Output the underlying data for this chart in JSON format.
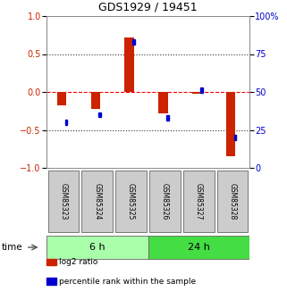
{
  "title": "GDS1929 / 19451",
  "samples": [
    "GSM85323",
    "GSM85324",
    "GSM85325",
    "GSM85326",
    "GSM85327",
    "GSM85328"
  ],
  "log2_ratio": [
    -0.18,
    -0.22,
    0.72,
    -0.28,
    -0.02,
    -0.85
  ],
  "percentile_rank": [
    30,
    35,
    83,
    33,
    51,
    20
  ],
  "groups": [
    {
      "label": "6 h",
      "indices": [
        0,
        1,
        2
      ],
      "color": "#aaffaa"
    },
    {
      "label": "24 h",
      "indices": [
        3,
        4,
        5
      ],
      "color": "#44dd44"
    }
  ],
  "red_color": "#cc2200",
  "blue_color": "#0000cc",
  "ylim_left": [
    -1,
    1
  ],
  "ylim_right": [
    0,
    100
  ],
  "yticks_left": [
    -1,
    -0.5,
    0,
    0.5,
    1
  ],
  "yticks_right": [
    0,
    25,
    50,
    75,
    100
  ],
  "hlines_dotted": [
    -0.5,
    0.5
  ],
  "hline_dashed": 0,
  "background_color": "#ffffff",
  "sample_box_color": "#cccccc",
  "sample_box_edge": "#666666",
  "bar_width": 0.28,
  "blue_sq_size": 0.07
}
